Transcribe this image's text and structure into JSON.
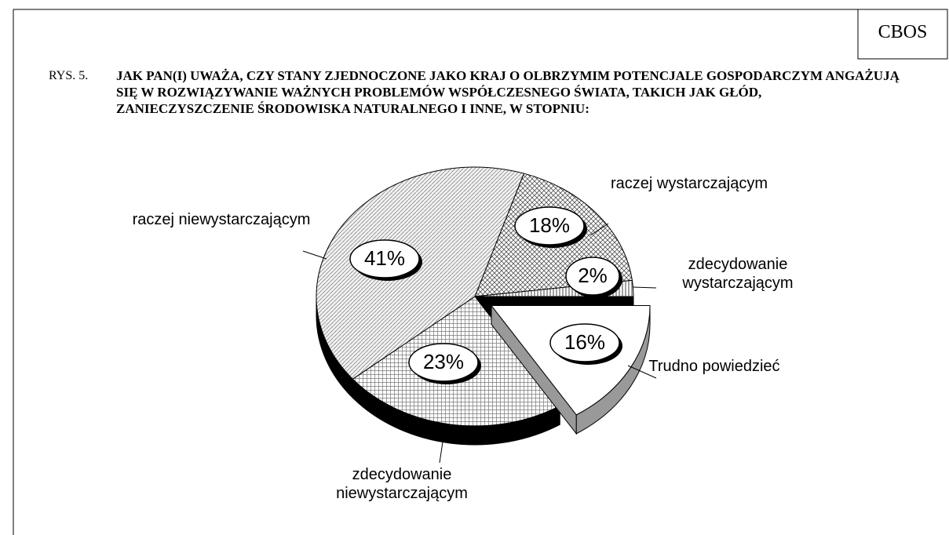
{
  "header": {
    "source": "CBOS",
    "figure": "RYS. 5.",
    "question": "JAK PAN(I) UWAŻA, CZY STANY ZJEDNOCZONE JAKO KRAJ O OLBRZYMIM POTENCJALE GOSPODARCZYM ANGAŻUJĄ SIĘ W ROZWIĄZYWANIE WAŻNYCH PROBLEMÓW WSPÓŁCZESNEGO ŚWIATA, TAKICH JAK GŁÓD, ZANIECZYSZCZENIE ŚRODOWISKA NATURALNEGO I INNE, W STOPNIU:"
  },
  "chart_data": {
    "type": "pie",
    "categories": [
      "raczej wystarczającym",
      "zdecydowanie wystarczającym",
      "Trudno powiedzieć",
      "zdecydowanie niewystarczającym",
      "raczej niewystarczającym"
    ],
    "values": [
      18,
      2,
      16,
      23,
      41
    ],
    "value_labels": [
      "18%",
      "2%",
      "16%",
      "23%",
      "41%"
    ],
    "exploded": "Trudno powiedzieć"
  }
}
